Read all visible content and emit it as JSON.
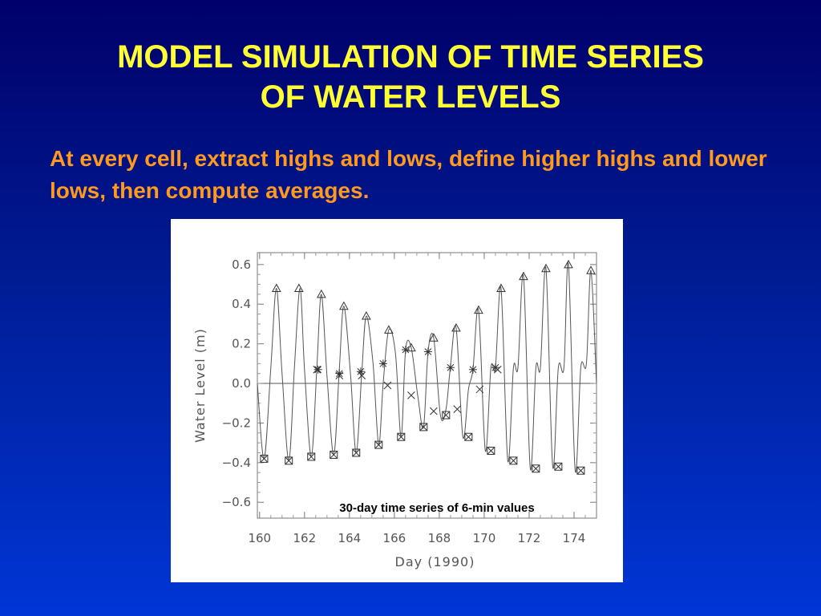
{
  "slide": {
    "title_line1": "MODEL SIMULATION OF TIME SERIES",
    "title_line2": "OF WATER LEVELS",
    "subtitle": "At every cell, extract highs and lows, define higher highs and lower lows, then compute averages."
  },
  "colors": {
    "title": "#ffff33",
    "subtitle": "#ff9a1f",
    "background": "#0022a8"
  },
  "chart_data": {
    "type": "line",
    "xlabel": "Day (1990)",
    "ylabel": "Water Level (m)",
    "annotation": "30-day time series of 6-min values",
    "xlim": [
      159.9,
      175.0
    ],
    "ylim": [
      -0.68,
      0.66
    ],
    "xticks": [
      160,
      162,
      164,
      166,
      168,
      170,
      172,
      174
    ],
    "yticks": [
      0.6,
      0.4,
      0.2,
      0.0,
      -0.2,
      -0.4,
      -0.6
    ],
    "ytick_labels": [
      "0.6",
      "0.4",
      "0.2",
      "0.0",
      "−0.2",
      "−0.4",
      "−0.6"
    ],
    "zero_line": true,
    "series": [
      {
        "type": "line",
        "x": [
          159.9,
          160.2,
          160.5,
          160.75,
          161.0,
          161.3,
          161.55,
          161.8,
          162.0,
          162.3,
          162.55,
          162.75,
          163.0,
          163.3,
          163.55,
          163.75,
          164.05,
          164.3,
          164.55,
          164.75,
          165.05,
          165.3,
          165.5,
          165.75,
          166.05,
          166.3,
          166.5,
          166.75,
          167.05,
          167.3,
          167.5,
          167.75,
          168.05,
          168.3,
          168.5,
          168.75,
          169.05,
          169.3,
          169.5,
          169.75,
          170.05,
          170.3,
          170.5,
          170.75,
          171.05,
          171.3,
          171.5,
          171.75,
          172.05,
          172.3,
          172.5,
          172.75,
          173.05,
          173.3,
          173.55,
          173.75,
          174.05,
          174.3,
          174.55,
          174.75,
          175.0
        ],
        "y": [
          0.0,
          -0.38,
          0.08,
          0.48,
          0.05,
          -0.39,
          0.08,
          0.48,
          0.07,
          -0.37,
          0.08,
          0.45,
          0.04,
          -0.36,
          0.07,
          0.39,
          0.04,
          -0.35,
          0.06,
          0.34,
          0.1,
          -0.31,
          0.0,
          0.27,
          0.15,
          -0.27,
          0.17,
          0.18,
          -0.07,
          -0.22,
          0.16,
          0.23,
          -0.16,
          -0.13,
          0.09,
          0.28,
          -0.27,
          -0.03,
          0.07,
          0.37,
          -0.34,
          0.08,
          0.08,
          0.48,
          -0.39,
          0.08,
          0.08,
          0.54,
          -0.43,
          0.08,
          0.08,
          0.58,
          -0.42,
          0.08,
          0.08,
          0.6,
          -0.44,
          0.08,
          0.1,
          0.57,
          0.0
        ]
      },
      {
        "type": "scatter",
        "marker": "triangle",
        "x": [
          160.75,
          161.75,
          162.75,
          163.75,
          164.75,
          165.75,
          166.75,
          167.75,
          168.75,
          169.75,
          170.75,
          171.75,
          172.75,
          173.75,
          174.75
        ],
        "y": [
          0.48,
          0.48,
          0.45,
          0.39,
          0.34,
          0.27,
          0.18,
          0.23,
          0.28,
          0.37,
          0.48,
          0.54,
          0.58,
          0.6,
          0.57
        ]
      },
      {
        "type": "scatter",
        "marker": "boxed-x",
        "x": [
          160.2,
          161.3,
          162.3,
          163.3,
          164.3,
          165.3,
          166.3,
          167.3,
          168.3,
          169.3,
          170.3,
          171.3,
          172.3,
          173.3,
          174.3
        ],
        "y": [
          -0.38,
          -0.39,
          -0.37,
          -0.36,
          -0.35,
          -0.31,
          -0.27,
          -0.22,
          -0.16,
          -0.27,
          -0.34,
          -0.39,
          -0.43,
          -0.42,
          -0.44
        ]
      },
      {
        "type": "scatter",
        "marker": "star",
        "x": [
          162.6,
          163.55,
          164.5,
          165.5,
          166.5,
          167.5,
          168.5,
          169.5,
          170.5
        ],
        "y": [
          0.07,
          0.05,
          0.06,
          0.1,
          0.17,
          0.16,
          0.08,
          0.07,
          0.08
        ]
      },
      {
        "type": "scatter",
        "marker": "x",
        "x": [
          162.55,
          163.55,
          164.55,
          165.7,
          166.75,
          167.75,
          168.8,
          169.8,
          170.6
        ],
        "y": [
          0.07,
          0.04,
          0.04,
          -0.01,
          -0.06,
          -0.14,
          -0.13,
          -0.03,
          0.07
        ]
      }
    ]
  }
}
